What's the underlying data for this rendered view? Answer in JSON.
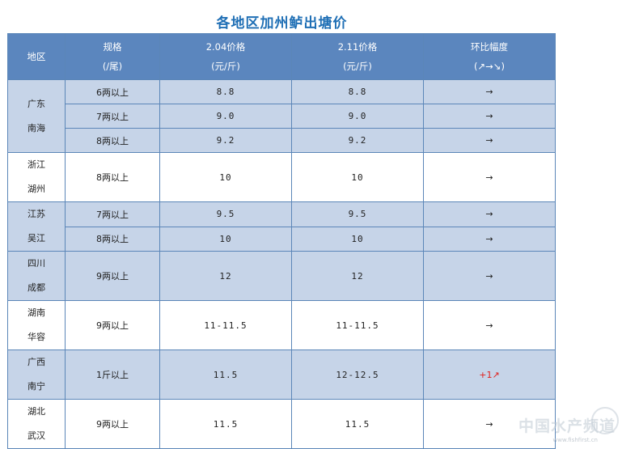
{
  "title": "各地区加州鲈出塘价",
  "headers": {
    "region": "地区",
    "spec_line1": "规格",
    "spec_line2": "(/尾)",
    "price1_line1": "2.04价格",
    "price1_line2": "(元/斤)",
    "price2_line1": "2.11价格",
    "price2_line2": "(元/斤)",
    "change_line1": "环比幅度",
    "change_line2": "(↗→↘)"
  },
  "groups": [
    {
      "region_line1": "广东",
      "region_line2": "南海",
      "shade": "blue",
      "rows": [
        {
          "spec": "6两以上",
          "p1": "8.8",
          "p2": "8.8",
          "trend": "→"
        },
        {
          "spec": "7两以上",
          "p1": "9.0",
          "p2": "9.0",
          "trend": "→"
        },
        {
          "spec": "8两以上",
          "p1": "9.2",
          "p2": "9.2",
          "trend": "→"
        }
      ]
    },
    {
      "region_line1": "浙江",
      "region_line2": "湖州",
      "shade": "white",
      "rows": [
        {
          "spec": "8两以上",
          "p1": "10",
          "p2": "10",
          "trend": "→"
        }
      ]
    },
    {
      "region_line1": "江苏",
      "region_line2": "吴江",
      "shade": "blue",
      "rows": [
        {
          "spec": "7两以上",
          "p1": "9.5",
          "p2": "9.5",
          "trend": "→"
        },
        {
          "spec": "8两以上",
          "p1": "10",
          "p2": "10",
          "trend": "→"
        }
      ]
    },
    {
      "region_line1": "四川",
      "region_line2": "成都",
      "shade": "blue",
      "rows": [
        {
          "spec": "9两以上",
          "p1": "12",
          "p2": "12",
          "trend": "→"
        }
      ]
    },
    {
      "region_line1": "湖南",
      "region_line2": "华容",
      "shade": "white",
      "rows": [
        {
          "spec": "9两以上",
          "p1": "11-11.5",
          "p2": "11-11.5",
          "trend": "→"
        }
      ]
    },
    {
      "region_line1": "广西",
      "region_line2": "南宁",
      "shade": "blue",
      "rows": [
        {
          "spec": "1斤以上",
          "p1": "11.5",
          "p2": "12-12.5",
          "trend": "+1↗",
          "up": true
        }
      ]
    },
    {
      "region_line1": "湖北",
      "region_line2": "武汉",
      "shade": "white",
      "rows": [
        {
          "spec": "9两以上",
          "p1": "11.5",
          "p2": "11.5",
          "trend": "→"
        }
      ]
    }
  ],
  "watermark": "中国水产频道",
  "watermark_url": "www.fishfirst.cn",
  "colors": {
    "header_bg": "#5b86be",
    "row_blue": "#c6d4e8",
    "title": "#1f6fb5",
    "up": "#e0201c"
  }
}
